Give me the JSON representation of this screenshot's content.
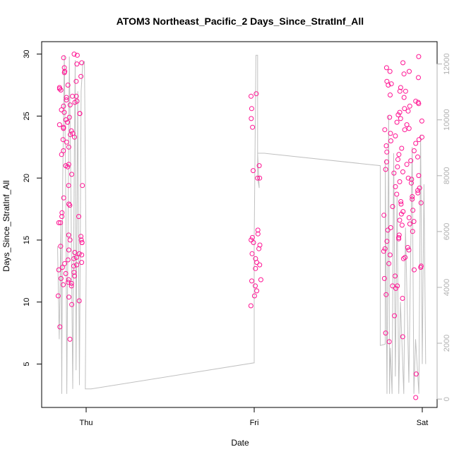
{
  "chart_data": {
    "type": "scatter",
    "title": "ATOM3 Northeast_Pacific_2 Days_Since_StratInf_All",
    "xlabel": "Date",
    "ylabel": "Days_Since_StratInf_All",
    "x_ticks": [
      "Thu",
      "Fri",
      "Sat"
    ],
    "y_ticks": [
      5,
      10,
      15,
      20,
      25,
      30
    ],
    "y_ticks_right": [
      0,
      2000,
      4000,
      6000,
      8000,
      10000,
      12000
    ],
    "ylim": [
      1.5,
      31
    ],
    "ylim_right": [
      -300,
      12800
    ],
    "x_unit": "days since Thu",
    "colors": {
      "points": "#ff1493",
      "line": "#c0c0c0",
      "right_axis": "#b0b0b0",
      "axes": "#000000"
    },
    "line_points": [
      [
        -0.17,
        14.5
      ],
      [
        -0.16,
        7.0
      ],
      [
        -0.15,
        16.5
      ],
      [
        -0.145,
        2.6
      ],
      [
        -0.14,
        19.5
      ],
      [
        -0.13,
        29.9
      ],
      [
        -0.12,
        17.0
      ],
      [
        -0.115,
        2.6
      ],
      [
        -0.11,
        12.0
      ],
      [
        -0.1,
        29.8
      ],
      [
        -0.09,
        18.0
      ],
      [
        -0.08,
        3.0
      ],
      [
        -0.07,
        22.0
      ],
      [
        -0.065,
        29.5
      ],
      [
        -0.06,
        4.5
      ],
      [
        -0.05,
        27.0
      ],
      [
        -0.045,
        14.0
      ],
      [
        -0.04,
        3.3
      ],
      [
        -0.03,
        27.0
      ],
      [
        -0.02,
        29.3
      ],
      [
        -0.01,
        29.4
      ],
      [
        0.0,
        13.0
      ],
      [
        -0.005,
        3.0
      ],
      [
        0.03,
        3.0
      ],
      [
        1.0,
        5.1
      ],
      [
        1.0,
        15.0
      ],
      [
        1.01,
        29.9
      ],
      [
        1.02,
        29.9
      ],
      [
        1.02,
        20.0
      ],
      [
        1.03,
        19.2
      ],
      [
        1.02,
        22.0
      ],
      [
        1.06,
        22.0
      ],
      [
        1.75,
        21.0
      ],
      [
        1.75,
        6.5
      ],
      [
        1.78,
        6.6
      ],
      [
        1.78,
        21.5
      ],
      [
        1.79,
        2.6
      ],
      [
        1.8,
        25.0
      ],
      [
        1.805,
        2.6
      ],
      [
        1.81,
        6.3
      ],
      [
        1.82,
        2.6
      ],
      [
        1.83,
        22.0
      ],
      [
        1.84,
        4.0
      ],
      [
        1.85,
        18.5
      ],
      [
        1.86,
        2.6
      ],
      [
        1.87,
        10.0
      ],
      [
        1.89,
        2.6
      ],
      [
        1.9,
        16.0
      ],
      [
        1.92,
        3.5
      ],
      [
        1.94,
        22.5
      ],
      [
        1.95,
        2.6
      ],
      [
        1.96,
        7.0
      ],
      [
        1.98,
        2.6
      ],
      [
        1.99,
        23.5
      ],
      [
        2.0,
        5.0
      ],
      [
        2.01,
        19.5
      ],
      [
        2.02,
        5.0
      ]
    ],
    "series": [
      {
        "clusters": [
          {
            "x_range": [
              -0.17,
              -0.02
            ],
            "y_values": [
              7.0,
              9.8,
              16.4,
              18.4,
              22.5,
              23.5,
              24.3,
              25.2,
              26.6,
              27.5,
              28.6,
              29.9,
              30.0,
              27.3,
              25.9,
              24.0,
              23.3,
              21.9,
              20.3,
              17.8,
              17.2,
              16.4,
              15.0,
              14.8,
              14.5,
              14.2,
              13.8,
              12.8,
              11.6,
              11.3,
              12.1,
              13.1,
              16.9,
              19.4,
              21.1,
              22.2,
              23.8,
              24.7,
              25.5,
              26.2,
              26.5,
              26.3,
              27.2,
              28.2,
              29.7,
              25.2,
              24.9,
              24.1,
              23.6,
              20.9,
              13.0,
              12.4,
              11.9,
              11.4,
              10.4,
              8.0,
              12.6,
              13.4,
              14.0,
              13.5,
              13.2,
              12.3,
              11.8,
              15.0,
              15.4,
              16.9,
              17.9,
              19.4,
              25.3,
              25.8,
              26.6,
              27.1,
              28.5,
              29.2,
              10.1,
              14.8,
              15.3,
              13.9,
              13.6,
              12.9,
              11.5,
              10.5,
              21.0,
              22.9,
              23.1,
              24.5,
              26.1,
              27.8,
              28.9,
              29.3
            ]
          },
          {
            "x_range": [
              0.98,
              1.04
            ],
            "y_values": [
              9.7,
              10.5,
              10.9,
              11.3,
              11.7,
              11.8,
              12.7,
              13.0,
              13.2,
              13.5,
              13.9,
              14.3,
              14.6,
              14.8,
              15.0,
              15.2,
              15.5,
              15.8,
              20.0,
              20.0,
              20.6,
              21.0,
              24.1,
              24.8,
              25.6,
              26.6,
              26.8
            ]
          },
          {
            "x_range": [
              1.77,
              2.0
            ],
            "y_values": [
              2.3,
              4.2,
              6.8,
              7.2,
              7.5,
              8.9,
              10.3,
              10.6,
              11.3,
              11.3,
              12.1,
              12.6,
              13.1,
              13.8,
              14.1,
              14.4,
              14.9,
              15.4,
              15.8,
              16.2,
              16.6,
              17.0,
              17.4,
              17.9,
              18.3,
              18.7,
              19.2,
              19.6,
              20.0,
              20.4,
              20.9,
              21.3,
              21.7,
              22.1,
              22.6,
              23.0,
              23.4,
              23.9,
              24.3,
              24.8,
              25.1,
              25.6,
              26.0,
              26.5,
              27.0,
              27.5,
              28.1,
              28.6,
              29.3,
              29.8,
              16.3,
              17.1,
              18.0,
              18.8,
              19.7,
              20.5,
              21.4,
              22.2,
              23.1,
              23.9,
              24.6,
              25.4,
              26.2,
              27.3,
              28.9,
              12.9,
              13.6,
              14.2,
              15.1,
              15.7,
              16.5,
              17.3,
              18.1,
              19.0,
              19.9,
              20.7,
              21.5,
              22.4,
              23.3,
              24.0,
              24.9,
              25.8,
              26.7,
              27.6,
              28.4,
              11.1,
              11.9,
              12.8,
              13.5,
              14.3,
              15.2,
              16.0,
              16.8,
              17.7,
              18.5,
              19.3,
              20.2,
              21.1,
              21.9,
              22.8,
              23.6,
              24.5,
              25.3,
              26.1,
              27.0,
              27.8,
              28.6
            ]
          }
        ]
      }
    ]
  }
}
